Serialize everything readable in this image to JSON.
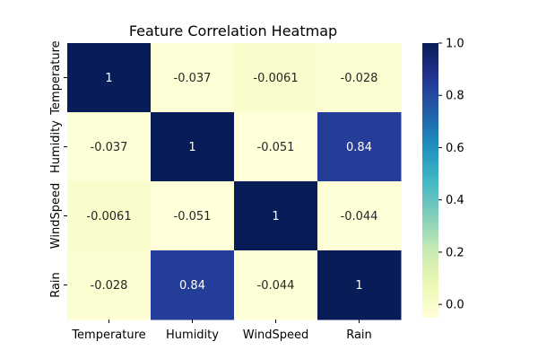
{
  "chart_data": {
    "type": "heatmap",
    "title": "Feature Correlation Heatmap",
    "x_labels": [
      "Temperature",
      "Humidity",
      "WindSpeed",
      "Rain"
    ],
    "y_labels": [
      "Temperature",
      "Humidity",
      "WindSpeed",
      "Rain"
    ],
    "values": [
      [
        1,
        -0.037,
        -0.0061,
        -0.028
      ],
      [
        -0.037,
        1,
        -0.051,
        0.84
      ],
      [
        -0.0061,
        -0.051,
        1,
        -0.044
      ],
      [
        -0.028,
        0.84,
        -0.044,
        1
      ]
    ],
    "cell_labels": [
      [
        "1",
        "-0.037",
        "-0.0061",
        "-0.028"
      ],
      [
        "-0.037",
        "1",
        "-0.051",
        "0.84"
      ],
      [
        "-0.0061",
        "-0.051",
        "1",
        "-0.044"
      ],
      [
        "-0.028",
        "0.84",
        "-0.044",
        "1"
      ]
    ],
    "colormap": "YlGnBu",
    "colorbar": {
      "range": [
        -0.051,
        1.0
      ],
      "ticks": [
        0.0,
        0.2,
        0.4,
        0.6,
        0.8,
        1.0
      ],
      "tick_labels": [
        "0.0",
        "0.2",
        "0.4",
        "0.6",
        "0.8",
        "1.0"
      ]
    }
  }
}
